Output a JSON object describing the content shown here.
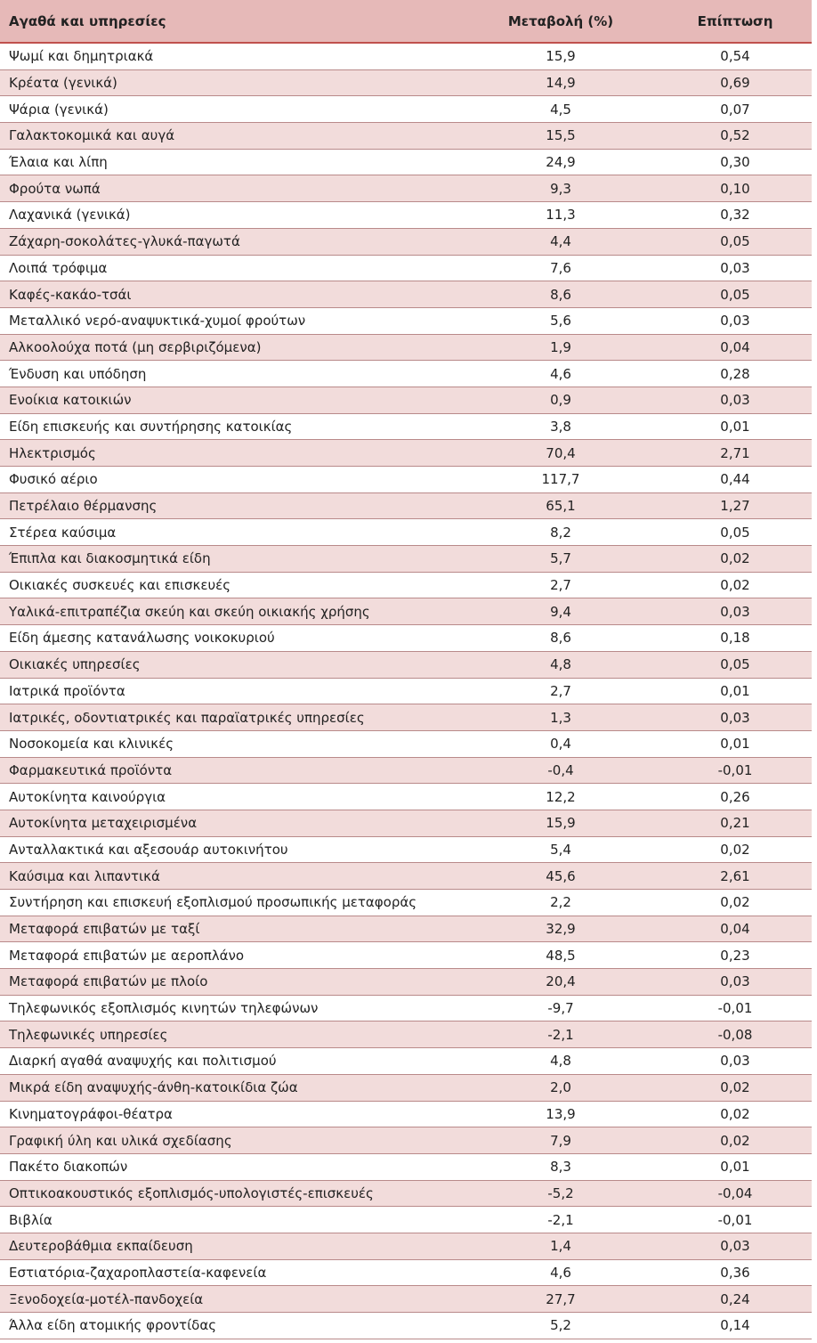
{
  "table": {
    "header": [
      "Αγαθά και υπηρεσίες",
      "Μεταβολή (%)",
      "Επίπτωση"
    ],
    "rows": [
      [
        "Ψωμί και δημητριακά",
        "15,9",
        "0,54"
      ],
      [
        "Κρέατα (γενικά)",
        "14,9",
        "0,69"
      ],
      [
        "Ψάρια (γενικά)",
        "4,5",
        "0,07"
      ],
      [
        "Γαλακτοκομικά και αυγά",
        "15,5",
        "0,52"
      ],
      [
        "Έλαια και λίπη",
        "24,9",
        "0,30"
      ],
      [
        "Φρούτα νωπά",
        "9,3",
        "0,10"
      ],
      [
        "Λαχανικά (γενικά)",
        "11,3",
        "0,32"
      ],
      [
        "Ζάχαρη-σοκολάτες-γλυκά-παγωτά",
        "4,4",
        "0,05"
      ],
      [
        "Λοιπά τρόφιμα",
        "7,6",
        "0,03"
      ],
      [
        "Καφές-κακάο-τσάι",
        "8,6",
        "0,05"
      ],
      [
        "Μεταλλικό νερό-αναψυκτικά-χυμοί φρούτων",
        "5,6",
        "0,03"
      ],
      [
        "Αλκοολούχα ποτά (μη σερβιριζόμενα)",
        "1,9",
        "0,04"
      ],
      [
        "Ένδυση και υπόδηση",
        "4,6",
        "0,28"
      ],
      [
        "Ενοίκια κατοικιών",
        "0,9",
        "0,03"
      ],
      [
        "Είδη επισκευής και συντήρησης κατοικίας",
        "3,8",
        "0,01"
      ],
      [
        "Ηλεκτρισμός",
        "70,4",
        "2,71"
      ],
      [
        "Φυσικό αέριο",
        "117,7",
        "0,44"
      ],
      [
        "Πετρέλαιο θέρμανσης",
        "65,1",
        "1,27"
      ],
      [
        "Στέρεα καύσιμα",
        "8,2",
        "0,05"
      ],
      [
        "Έπιπλα και διακοσμητικά είδη",
        "5,7",
        "0,02"
      ],
      [
        "Οικιακές συσκευές και επισκευές",
        "2,7",
        "0,02"
      ],
      [
        "Υαλικά-επιτραπέζια σκεύη και σκεύη οικιακής χρήσης",
        "9,4",
        "0,03"
      ],
      [
        "Είδη άμεσης κατανάλωσης νοικοκυριού",
        "8,6",
        "0,18"
      ],
      [
        "Οικιακές υπηρεσίες",
        "4,8",
        "0,05"
      ],
      [
        "Ιατρικά προϊόντα",
        "2,7",
        "0,01"
      ],
      [
        "Ιατρικές, οδοντιατρικές και παραϊατρικές υπηρεσίες",
        "1,3",
        "0,03"
      ],
      [
        "Νοσοκομεία και κλινικές",
        "0,4",
        "0,01"
      ],
      [
        "Φαρμακευτικά προϊόντα",
        "-0,4",
        "-0,01"
      ],
      [
        "Αυτοκίνητα καινούργια",
        "12,2",
        "0,26"
      ],
      [
        "Αυτοκίνητα μεταχειρισμένα",
        "15,9",
        "0,21"
      ],
      [
        "Ανταλλακτικά και αξεσουάρ αυτοκινήτου",
        "5,4",
        "0,02"
      ],
      [
        "Καύσιμα και λιπαντικά",
        "45,6",
        "2,61"
      ],
      [
        "Συντήρηση και επισκευή εξοπλισμού προσωπικής μεταφοράς",
        "2,2",
        "0,02"
      ],
      [
        "Μεταφορά επιβατών με ταξί",
        "32,9",
        "0,04"
      ],
      [
        "Μεταφορά επιβατών με αεροπλάνο",
        "48,5",
        "0,23"
      ],
      [
        "Μεταφορά επιβατών με πλοίο",
        "20,4",
        "0,03"
      ],
      [
        "Τηλεφωνικός εξοπλισμός κινητών τηλεφώνων",
        "-9,7",
        "-0,01"
      ],
      [
        "Τηλεφωνικές υπηρεσίες",
        "-2,1",
        "-0,08"
      ],
      [
        "Διαρκή αγαθά αναψυχής και πολιτισμού",
        "4,8",
        "0,03"
      ],
      [
        "Μικρά είδη αναψυχής-άνθη-κατοικίδια ζώα",
        "2,0",
        "0,02"
      ],
      [
        "Κινηματογράφοι-θέατρα",
        "13,9",
        "0,02"
      ],
      [
        "Γραφική ύλη και υλικά σχεδίασης",
        "7,9",
        "0,02"
      ],
      [
        "Πακέτο διακοπών",
        "8,3",
        "0,01"
      ],
      [
        "Οπτικοακουστικός εξοπλισμός-υπολογιστές-επισκευές",
        "-5,2",
        "-0,04"
      ],
      [
        "Βιβλία",
        "-2,1",
        "-0,01"
      ],
      [
        "Δευτεροβάθμια εκπαίδευση",
        "1,4",
        "0,03"
      ],
      [
        "Εστιατόρια-ζαχαροπλαστεία-καφενεία",
        "4,6",
        "0,36"
      ],
      [
        "Ξενοδοχεία-μοτέλ-πανδοχεία",
        "27,7",
        "0,24"
      ],
      [
        "Άλλα είδη ατομικής φροντίδας",
        "5,2",
        "0,14"
      ]
    ]
  }
}
